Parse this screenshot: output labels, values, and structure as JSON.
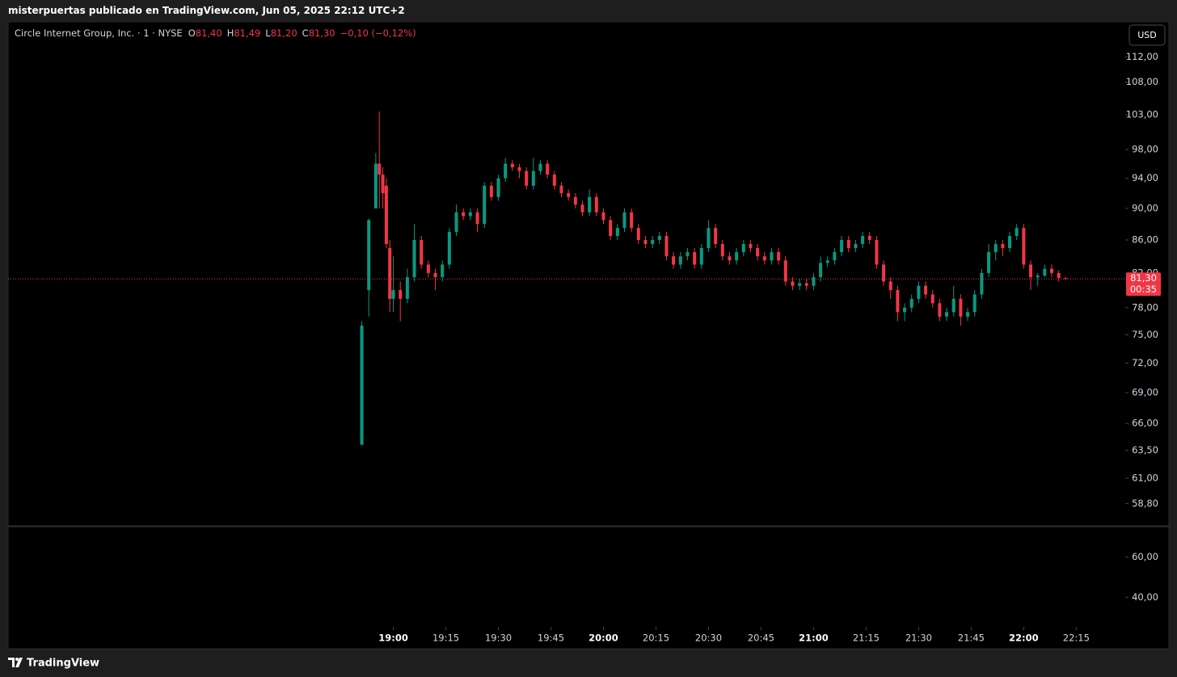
{
  "header": {
    "text": "misterpuertas publicado en TradingView.com, Jun 05, 2025 22:12 UTC+2"
  },
  "footer": {
    "brand": "TradingView"
  },
  "chart_data": {
    "type": "candlestick",
    "title": "Circle Internet Group, Inc. · 1 · NYSE",
    "legend": {
      "labels": [
        "O",
        "H",
        "L",
        "C"
      ],
      "values": [
        "81,40",
        "81,49",
        "81,20",
        "81,30"
      ],
      "change": "−0,10 (−0,12%)"
    },
    "currency": "USD",
    "x": [
      "18:51",
      "18:53",
      "18:55",
      "18:56",
      "18:57",
      "18:58",
      "18:59",
      "19:00",
      "19:02",
      "19:04",
      "19:06",
      "19:08",
      "19:10",
      "19:12",
      "19:14",
      "19:16",
      "19:18",
      "19:20",
      "19:22",
      "19:24",
      "19:26",
      "19:28",
      "19:30",
      "19:32",
      "19:34",
      "19:36",
      "19:38",
      "19:40",
      "19:42",
      "19:44",
      "19:46",
      "19:48",
      "19:50",
      "19:52",
      "19:54",
      "19:56",
      "19:58",
      "20:00",
      "20:02",
      "20:04",
      "20:06",
      "20:08",
      "20:10",
      "20:12",
      "20:14",
      "20:16",
      "20:18",
      "20:20",
      "20:22",
      "20:24",
      "20:26",
      "20:28",
      "20:30",
      "20:32",
      "20:34",
      "20:36",
      "20:38",
      "20:40",
      "20:42",
      "20:44",
      "20:46",
      "20:48",
      "20:50",
      "20:52",
      "20:54",
      "20:56",
      "20:58",
      "21:00",
      "21:02",
      "21:04",
      "21:06",
      "21:08",
      "21:10",
      "21:12",
      "21:14",
      "21:16",
      "21:18",
      "21:20",
      "21:22",
      "21:24",
      "21:26",
      "21:28",
      "21:30",
      "21:32",
      "21:34",
      "21:36",
      "21:38",
      "21:40",
      "21:42",
      "21:44",
      "21:46",
      "21:48",
      "21:50",
      "21:52",
      "21:54",
      "21:56",
      "21:58",
      "22:00",
      "22:02",
      "22:04",
      "22:06",
      "22:08",
      "22:10",
      "22:12"
    ],
    "series": [
      {
        "up_color": "#089981",
        "down_color": "#f23645",
        "open": [
          64,
          80,
          90,
          96,
          94.5,
          93,
          85,
          79,
          80,
          79,
          81.5,
          86,
          83,
          82,
          81.5,
          83,
          87,
          89.5,
          89,
          89.5,
          88,
          93,
          91.5,
          94,
          96,
          95.5,
          95,
          93,
          95,
          96,
          94.5,
          93,
          92,
          91.5,
          90.5,
          89.5,
          91.5,
          89.5,
          88.5,
          86.5,
          87.5,
          89.5,
          87.5,
          86,
          85.5,
          86,
          86.5,
          84,
          83,
          84,
          84.5,
          83,
          85,
          87.5,
          85.5,
          84,
          83.5,
          84.5,
          85.5,
          85,
          84,
          83.5,
          84.5,
          83.5,
          81,
          80.5,
          80.8,
          80.5,
          81.5,
          83.2,
          83.5,
          84.5,
          86,
          85,
          85.5,
          86.5,
          86,
          83,
          81,
          80,
          77.5,
          78,
          79,
          80.5,
          79.5,
          78.5,
          77,
          77.5,
          79,
          77,
          77.5,
          79.5,
          82,
          84.5,
          85.5,
          85,
          86.5,
          87.5,
          83,
          81.5,
          81.7,
          82.5,
          82,
          81.4
        ],
        "high": [
          76.5,
          88.7,
          97.5,
          103.5,
          95.5,
          94,
          86,
          84,
          81,
          82.5,
          88,
          86.5,
          83.5,
          82.5,
          83.5,
          87.5,
          90.5,
          90,
          90,
          90,
          93.5,
          93.5,
          94.5,
          96.8,
          96.5,
          96,
          95.5,
          96.8,
          96.5,
          96.5,
          95,
          93.5,
          92.5,
          92,
          91,
          92.5,
          92,
          90,
          89,
          88,
          90,
          90,
          88,
          86.5,
          86.5,
          87,
          87,
          84.5,
          84.5,
          85,
          85,
          85.5,
          88.5,
          88,
          86,
          84.5,
          85,
          86,
          86,
          85.5,
          84.5,
          85,
          85,
          84,
          81.5,
          81.3,
          81.3,
          82,
          84,
          84,
          85,
          86.5,
          86.5,
          86,
          87,
          87,
          86.5,
          83.5,
          81.5,
          80.5,
          78.5,
          79.5,
          81,
          81,
          80,
          79,
          78,
          80.5,
          79.5,
          78,
          80,
          82.5,
          85.5,
          86,
          86,
          87,
          88,
          88,
          83.5,
          82,
          83,
          83,
          82.3,
          81.49
        ],
        "low": [
          64,
          77,
          90,
          90,
          90,
          85,
          77.5,
          77.5,
          76.5,
          78.5,
          81,
          82.5,
          81.5,
          80,
          81,
          82.5,
          86.5,
          88.5,
          88.5,
          87,
          87.5,
          91,
          91,
          93.5,
          95,
          94,
          92.5,
          92.5,
          94.5,
          94,
          92.5,
          91.5,
          91,
          90,
          89,
          89,
          89,
          88,
          86,
          86,
          87,
          87,
          85.5,
          85,
          85,
          85.5,
          83.5,
          82.5,
          82.5,
          83.5,
          82.5,
          82.5,
          84.5,
          85,
          83.5,
          83,
          83,
          84,
          84.5,
          83.5,
          83,
          83,
          83,
          80.5,
          80,
          80,
          80,
          80,
          81,
          82.7,
          83,
          84,
          84.5,
          84.5,
          85,
          85.5,
          82.5,
          80.5,
          79,
          76.5,
          76.5,
          77.5,
          78.5,
          79,
          78,
          76.5,
          76.5,
          77,
          76,
          76.5,
          77,
          79,
          81.5,
          83.5,
          84,
          84.5,
          86,
          82.5,
          80,
          80.5,
          81.5,
          81.5,
          81,
          81.2
        ],
        "close": [
          76,
          88.5,
          96,
          94.5,
          92,
          85.5,
          79,
          80,
          79,
          81.5,
          86,
          83,
          82,
          81.5,
          83,
          87,
          89.5,
          89,
          89.5,
          88,
          93,
          91.5,
          94,
          96,
          95.5,
          95,
          93,
          95,
          96,
          94.5,
          93,
          92,
          91.5,
          90.5,
          89.5,
          91.5,
          89.5,
          88.5,
          86.5,
          87.5,
          89.5,
          87.5,
          86,
          85.5,
          86,
          86.5,
          84,
          83,
          84,
          84.5,
          83,
          85,
          87.5,
          85.5,
          84,
          83.5,
          84.5,
          85.5,
          85,
          84,
          83.5,
          84.5,
          83.5,
          81,
          80.5,
          80.8,
          80.5,
          81.5,
          83.2,
          83.5,
          84.5,
          86,
          85,
          85.5,
          86.5,
          86,
          83,
          81,
          80,
          77.5,
          78,
          79,
          80.5,
          79.5,
          78.5,
          77,
          77.5,
          79,
          77,
          77.5,
          79.5,
          82,
          84.5,
          85.5,
          85,
          86.5,
          87.5,
          83,
          81.5,
          81.7,
          82.5,
          82,
          81.4,
          81.3
        ]
      }
    ],
    "xlim": [
      "17:10",
      "22:29"
    ],
    "xticks": [
      "19:00",
      "19:15",
      "19:30",
      "19:45",
      "20:00",
      "20:15",
      "20:30",
      "20:45",
      "21:00",
      "21:15",
      "21:30",
      "21:45",
      "22:00",
      "22:15"
    ],
    "ylim": [
      57,
      117.8
    ],
    "log": true,
    "yticks": [
      {
        "value": 112,
        "label": "112,00"
      },
      {
        "value": 108,
        "label": "108,00"
      },
      {
        "value": 103,
        "label": "103,00"
      },
      {
        "value": 98,
        "label": "98,00"
      },
      {
        "value": 94,
        "label": "94,00"
      },
      {
        "value": 90,
        "label": "90,00"
      },
      {
        "value": 86,
        "label": "86,00"
      },
      {
        "value": 82,
        "label": "82,00"
      },
      {
        "value": 78,
        "label": "78,00"
      },
      {
        "value": 75,
        "label": "75,00"
      },
      {
        "value": 72,
        "label": "72,00"
      },
      {
        "value": 69,
        "label": "69,00"
      },
      {
        "value": 66,
        "label": "66,00"
      },
      {
        "value": 63.5,
        "label": "63,50"
      },
      {
        "value": 61,
        "label": "61,00"
      },
      {
        "value": 58.8,
        "label": "58,80"
      }
    ],
    "last_price": {
      "value": 81.3,
      "label": "81,30",
      "countdown": "00:35"
    },
    "lower_pane": {
      "ylim": [
        25.6,
        74.8
      ],
      "yticks": [
        {
          "value": 60,
          "label": "60,00"
        },
        {
          "value": 40,
          "label": "40,00"
        }
      ]
    }
  }
}
